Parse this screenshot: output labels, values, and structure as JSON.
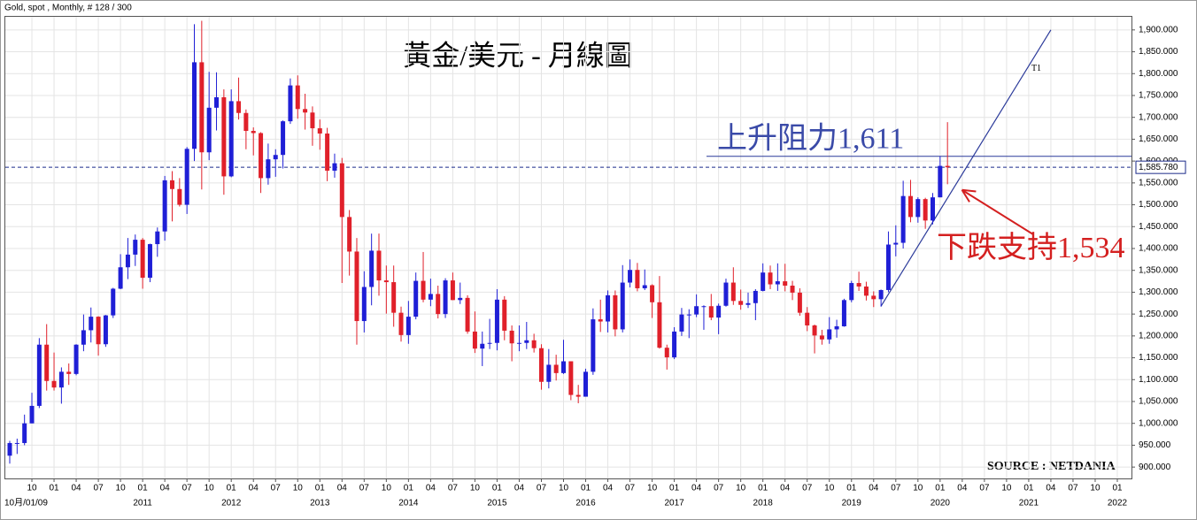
{
  "chart_data": {
    "type": "candlestick",
    "header": "Gold, spot , Monthly, # 128 / 300",
    "title": "黃金/美元 - 月線圖",
    "source": "SOURCE : NETDANIA",
    "up_color": "#1f1fd6",
    "down_color": "#e0202a",
    "grid": true,
    "ylim": [
      874,
      1930
    ],
    "x": [
      "2009-07",
      "2009-08",
      "2009-09",
      "2009-10",
      "2009-11",
      "2009-12",
      "2010-01",
      "2010-02",
      "2010-03",
      "2010-04",
      "2010-05",
      "2010-06",
      "2010-07",
      "2010-08",
      "2010-09",
      "2010-10",
      "2010-11",
      "2010-12",
      "2011-01",
      "2011-02",
      "2011-03",
      "2011-04",
      "2011-05",
      "2011-06",
      "2011-07",
      "2011-08",
      "2011-09",
      "2011-10",
      "2011-11",
      "2011-12",
      "2012-01",
      "2012-02",
      "2012-03",
      "2012-04",
      "2012-05",
      "2012-06",
      "2012-07",
      "2012-08",
      "2012-09",
      "2012-10",
      "2012-11",
      "2012-12",
      "2013-01",
      "2013-02",
      "2013-03",
      "2013-04",
      "2013-05",
      "2013-06",
      "2013-07",
      "2013-08",
      "2013-09",
      "2013-10",
      "2013-11",
      "2013-12",
      "2014-01",
      "2014-02",
      "2014-03",
      "2014-04",
      "2014-05",
      "2014-06",
      "2014-07",
      "2014-08",
      "2014-09",
      "2014-10",
      "2014-11",
      "2014-12",
      "2015-01",
      "2015-02",
      "2015-03",
      "2015-04",
      "2015-05",
      "2015-06",
      "2015-07",
      "2015-08",
      "2015-09",
      "2015-10",
      "2015-11",
      "2015-12",
      "2016-01",
      "2016-02",
      "2016-03",
      "2016-04",
      "2016-05",
      "2016-06",
      "2016-07",
      "2016-08",
      "2016-09",
      "2016-10",
      "2016-11",
      "2016-12",
      "2017-01",
      "2017-02",
      "2017-03",
      "2017-04",
      "2017-05",
      "2017-06",
      "2017-07",
      "2017-08",
      "2017-09",
      "2017-10",
      "2017-11",
      "2017-12",
      "2018-01",
      "2018-02",
      "2018-03",
      "2018-04",
      "2018-05",
      "2018-06",
      "2018-07",
      "2018-08",
      "2018-09",
      "2018-10",
      "2018-11",
      "2018-12",
      "2019-01",
      "2019-02",
      "2019-03",
      "2019-04",
      "2019-05",
      "2019-06",
      "2019-07",
      "2019-08",
      "2019-09",
      "2019-10",
      "2019-11",
      "2019-12",
      "2020-01",
      "2020-02"
    ],
    "open": [
      926,
      955,
      955,
      1000,
      1040,
      1180,
      1097,
      1082,
      1118,
      1113,
      1180,
      1213,
      1244,
      1181,
      1247,
      1308,
      1357,
      1386,
      1420,
      1333,
      1410,
      1439,
      1556,
      1536,
      1500,
      1628,
      1826,
      1620,
      1722,
      1746,
      1565,
      1737,
      1710,
      1669,
      1664,
      1561,
      1604,
      1614,
      1691,
      1773,
      1719,
      1711,
      1675,
      1663,
      1578,
      1595,
      1472,
      1393,
      1234,
      1312,
      1395,
      1327,
      1323,
      1253,
      1202,
      1244,
      1326,
      1283,
      1296,
      1250,
      1327,
      1282,
      1287,
      1210,
      1171,
      1182,
      1184,
      1283,
      1212,
      1183,
      1184,
      1190,
      1172,
      1095,
      1134,
      1115,
      1142,
      1065,
      1061,
      1118,
      1238,
      1233,
      1293,
      1215,
      1322,
      1351,
      1309,
      1316,
      1277,
      1173,
      1151,
      1210,
      1249,
      1249,
      1268,
      1268,
      1242,
      1269,
      1322,
      1280,
      1271,
      1275,
      1303,
      1345,
      1318,
      1325,
      1315,
      1299,
      1253,
      1224,
      1201,
      1192,
      1215,
      1222,
      1282,
      1321,
      1313,
      1292,
      1284,
      1305,
      1409,
      1413,
      1520,
      1472,
      1513,
      1464,
      1517,
      1589
    ],
    "high": [
      960,
      965,
      1020,
      1070,
      1195,
      1227,
      1162,
      1128,
      1137,
      1181,
      1249,
      1265,
      1245,
      1248,
      1310,
      1387,
      1424,
      1432,
      1424,
      1411,
      1448,
      1566,
      1577,
      1561,
      1632,
      1913,
      1921,
      1804,
      1803,
      1764,
      1764,
      1791,
      1718,
      1677,
      1666,
      1640,
      1627,
      1693,
      1789,
      1796,
      1754,
      1725,
      1695,
      1676,
      1617,
      1607,
      1488,
      1424,
      1348,
      1434,
      1434,
      1361,
      1361,
      1267,
      1280,
      1345,
      1392,
      1331,
      1315,
      1332,
      1345,
      1322,
      1293,
      1256,
      1210,
      1239,
      1307,
      1291,
      1224,
      1224,
      1232,
      1205,
      1181,
      1170,
      1157,
      1191,
      1142,
      1088,
      1125,
      1263,
      1283,
      1304,
      1304,
      1362,
      1375,
      1367,
      1352,
      1318,
      1337,
      1180,
      1220,
      1264,
      1261,
      1295,
      1270,
      1296,
      1274,
      1331,
      1357,
      1306,
      1299,
      1307,
      1366,
      1361,
      1366,
      1365,
      1326,
      1309,
      1266,
      1226,
      1214,
      1243,
      1237,
      1285,
      1326,
      1347,
      1324,
      1302,
      1306,
      1439,
      1453,
      1555,
      1557,
      1517,
      1516,
      1527,
      1611,
      1689
    ],
    "low": [
      908,
      930,
      950,
      1000,
      1035,
      1075,
      1075,
      1045,
      1088,
      1110,
      1165,
      1185,
      1155,
      1175,
      1241,
      1307,
      1330,
      1360,
      1308,
      1323,
      1381,
      1418,
      1462,
      1496,
      1479,
      1600,
      1535,
      1602,
      1670,
      1523,
      1563,
      1695,
      1627,
      1613,
      1527,
      1546,
      1564,
      1583,
      1685,
      1697,
      1672,
      1635,
      1626,
      1554,
      1562,
      1321,
      1338,
      1180,
      1208,
      1270,
      1292,
      1251,
      1221,
      1187,
      1182,
      1238,
      1277,
      1268,
      1240,
      1241,
      1282,
      1273,
      1205,
      1161,
      1131,
      1170,
      1167,
      1190,
      1142,
      1165,
      1170,
      1162,
      1077,
      1080,
      1098,
      1113,
      1053,
      1046,
      1061,
      1111,
      1209,
      1208,
      1199,
      1208,
      1311,
      1302,
      1305,
      1241,
      1171,
      1123,
      1147,
      1200,
      1195,
      1243,
      1214,
      1236,
      1204,
      1267,
      1271,
      1260,
      1264,
      1236,
      1302,
      1307,
      1303,
      1302,
      1282,
      1246,
      1211,
      1160,
      1180,
      1182,
      1196,
      1221,
      1277,
      1303,
      1281,
      1266,
      1267,
      1300,
      1382,
      1400,
      1460,
      1459,
      1445,
      1455,
      1517,
      1547
    ],
    "close": [
      955,
      955,
      1000,
      1040,
      1180,
      1097,
      1082,
      1118,
      1113,
      1180,
      1213,
      1244,
      1181,
      1247,
      1308,
      1357,
      1386,
      1420,
      1333,
      1410,
      1439,
      1556,
      1536,
      1500,
      1628,
      1826,
      1620,
      1722,
      1746,
      1565,
      1737,
      1710,
      1669,
      1664,
      1561,
      1604,
      1614,
      1691,
      1773,
      1719,
      1711,
      1675,
      1663,
      1578,
      1595,
      1472,
      1393,
      1234,
      1312,
      1395,
      1327,
      1323,
      1253,
      1202,
      1244,
      1326,
      1283,
      1296,
      1250,
      1327,
      1282,
      1287,
      1210,
      1171,
      1182,
      1184,
      1283,
      1212,
      1183,
      1184,
      1190,
      1172,
      1095,
      1134,
      1115,
      1142,
      1065,
      1061,
      1118,
      1238,
      1233,
      1293,
      1215,
      1322,
      1351,
      1309,
      1316,
      1277,
      1173,
      1151,
      1210,
      1249,
      1249,
      1268,
      1268,
      1242,
      1269,
      1322,
      1280,
      1271,
      1275,
      1303,
      1345,
      1318,
      1325,
      1315,
      1299,
      1253,
      1224,
      1201,
      1192,
      1215,
      1222,
      1282,
      1321,
      1313,
      1292,
      1284,
      1305,
      1409,
      1413,
      1520,
      1472,
      1513,
      1464,
      1517,
      1589,
      1585.78
    ],
    "yticks": [
      {
        "value": 900,
        "label": "900.000"
      },
      {
        "value": 950,
        "label": "950.000"
      },
      {
        "value": 1000,
        "label": "1,000.000"
      },
      {
        "value": 1050,
        "label": "1,050.000"
      },
      {
        "value": 1100,
        "label": "1,100.000"
      },
      {
        "value": 1150,
        "label": "1,150.000"
      },
      {
        "value": 1200,
        "label": "1,200.000"
      },
      {
        "value": 1250,
        "label": "1,250.000"
      },
      {
        "value": 1300,
        "label": "1,300.000"
      },
      {
        "value": 1350,
        "label": "1,350.000"
      },
      {
        "value": 1400,
        "label": "1,400.000"
      },
      {
        "value": 1450,
        "label": "1,450.000"
      },
      {
        "value": 1500,
        "label": "1,500.000"
      },
      {
        "value": 1550,
        "label": "1,550.000"
      },
      {
        "value": 1600,
        "label": "1,600.000"
      },
      {
        "value": 1650,
        "label": "1,650.000"
      },
      {
        "value": 1700,
        "label": "1,700.000"
      },
      {
        "value": 1750,
        "label": "1,750.000"
      },
      {
        "value": 1800,
        "label": "1,800.000"
      },
      {
        "value": 1850,
        "label": "1,850.000"
      },
      {
        "value": 1900,
        "label": "1,900.000"
      }
    ],
    "xticks": [
      {
        "value": "2009-10",
        "label": "10"
      },
      {
        "value": "2010-01",
        "label": "01"
      },
      {
        "value": "2010-04",
        "label": "04"
      },
      {
        "value": "2010-07",
        "label": "07"
      },
      {
        "value": "2010-10",
        "label": "10"
      },
      {
        "value": "2011-01",
        "label": "01"
      },
      {
        "value": "2011-04",
        "label": "04"
      },
      {
        "value": "2011-07",
        "label": "07"
      },
      {
        "value": "2011-10",
        "label": "10"
      },
      {
        "value": "2012-01",
        "label": "01"
      },
      {
        "value": "2012-04",
        "label": "04"
      },
      {
        "value": "2012-07",
        "label": "07"
      },
      {
        "value": "2012-10",
        "label": "10"
      },
      {
        "value": "2013-01",
        "label": "01"
      },
      {
        "value": "2013-04",
        "label": "04"
      },
      {
        "value": "2013-07",
        "label": "07"
      },
      {
        "value": "2013-10",
        "label": "10"
      },
      {
        "value": "2014-01",
        "label": "01"
      },
      {
        "value": "2014-04",
        "label": "04"
      },
      {
        "value": "2014-07",
        "label": "07"
      },
      {
        "value": "2014-10",
        "label": "10"
      },
      {
        "value": "2015-01",
        "label": "01"
      },
      {
        "value": "2015-04",
        "label": "04"
      },
      {
        "value": "2015-07",
        "label": "07"
      },
      {
        "value": "2015-10",
        "label": "10"
      },
      {
        "value": "2016-01",
        "label": "01"
      },
      {
        "value": "2016-04",
        "label": "04"
      },
      {
        "value": "2016-07",
        "label": "07"
      },
      {
        "value": "2016-10",
        "label": "10"
      },
      {
        "value": "2017-01",
        "label": "01"
      },
      {
        "value": "2017-04",
        "label": "04"
      },
      {
        "value": "2017-07",
        "label": "07"
      },
      {
        "value": "2017-10",
        "label": "10"
      },
      {
        "value": "2018-01",
        "label": "01"
      },
      {
        "value": "2018-04",
        "label": "04"
      },
      {
        "value": "2018-07",
        "label": "07"
      },
      {
        "value": "2018-10",
        "label": "10"
      },
      {
        "value": "2019-01",
        "label": "01"
      },
      {
        "value": "2019-04",
        "label": "04"
      },
      {
        "value": "2019-07",
        "label": "07"
      },
      {
        "value": "2019-10",
        "label": "10"
      },
      {
        "value": "2020-01",
        "label": "01"
      },
      {
        "value": "2020-04",
        "label": "04"
      },
      {
        "value": "2020-07",
        "label": "07"
      },
      {
        "value": "2020-10",
        "label": "10"
      },
      {
        "value": "2021-01",
        "label": "01"
      },
      {
        "value": "2021-04",
        "label": "04"
      },
      {
        "value": "2021-07",
        "label": "07"
      },
      {
        "value": "2021-10",
        "label": "10"
      },
      {
        "value": "2022-01",
        "label": "01"
      }
    ],
    "year_labels": [
      {
        "value": "2010-01",
        "label": "10月/01/09"
      },
      {
        "value": "2011-01",
        "label": "2011"
      },
      {
        "value": "2012-01",
        "label": "2012"
      },
      {
        "value": "2013-01",
        "label": "2013"
      },
      {
        "value": "2014-01",
        "label": "2014"
      },
      {
        "value": "2015-01",
        "label": "2015"
      },
      {
        "value": "2016-01",
        "label": "2016"
      },
      {
        "value": "2017-01",
        "label": "2017"
      },
      {
        "value": "2018-01",
        "label": "2018"
      },
      {
        "value": "2019-01",
        "label": "2019"
      },
      {
        "value": "2020-01",
        "label": "2020"
      },
      {
        "value": "2021-01",
        "label": "2021"
      },
      {
        "value": "2022-01",
        "label": "2022"
      }
    ],
    "current": {
      "value": 1585.78,
      "label": "1,585.780"
    },
    "resistance": {
      "label": "上升阻力1,611",
      "value": 1611
    },
    "support": {
      "label": "下跌支持1,534",
      "value": 1534,
      "x": "2020-03"
    },
    "trendline": {
      "label": "T1",
      "x": [
        "2019-05",
        "2021-04"
      ],
      "values": [
        1268,
        1900
      ]
    }
  }
}
